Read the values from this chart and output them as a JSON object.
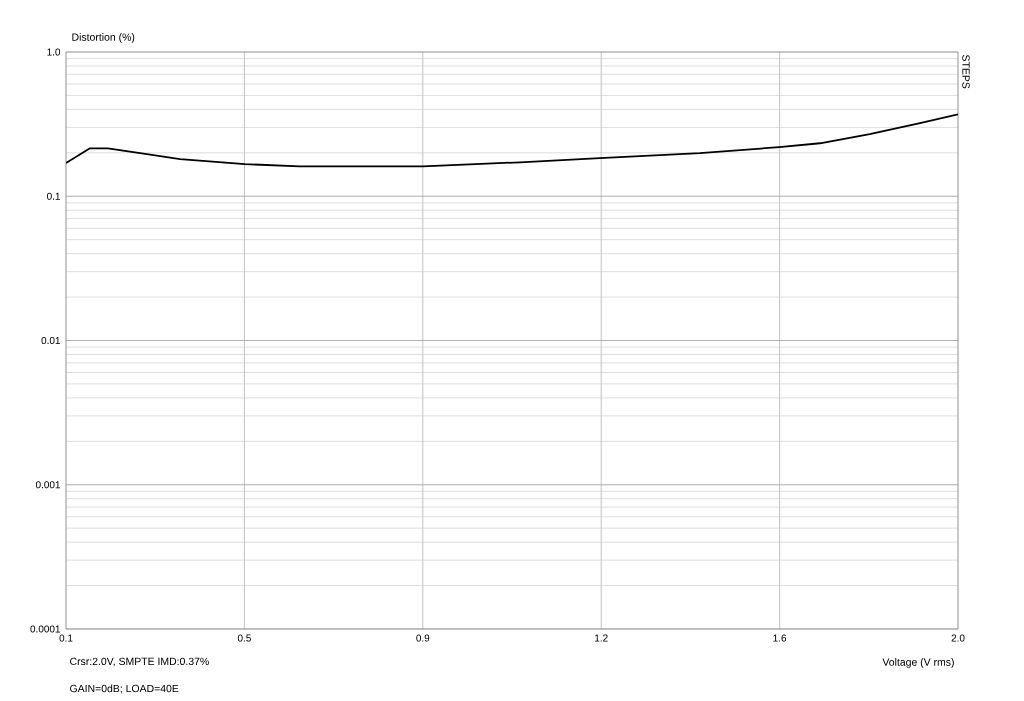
{
  "chart_data": {
    "type": "line",
    "xlabel": "Voltage (V rms)",
    "ylabel": "Distortion (%)",
    "annotations": [
      "STEPS",
      "Crsr:2.0V, SMPTE IMD:0.37%",
      "GAIN=0dB; LOAD=40E"
    ],
    "series": [
      {
        "color": "#000000",
        "x": [
          0.1,
          0.151,
          0.189,
          0.258,
          0.343,
          0.481,
          0.598,
          0.86,
          1.067,
          1.237,
          1.45,
          1.619,
          1.706,
          1.812,
          1.919,
          2.0
        ],
        "values": [
          0.17,
          0.215,
          0.215,
          0.199,
          0.181,
          0.167,
          0.161,
          0.161,
          0.172,
          0.184,
          0.199,
          0.219,
          0.233,
          0.27,
          0.321,
          0.37
        ]
      }
    ],
    "xlim": [
      0.1,
      2.0
    ],
    "xticks": [
      0.1,
      {
        "value": 0.48,
        "label": "0.5"
      },
      {
        "value": 0.86,
        "label": "0.9"
      },
      {
        "value": 1.24,
        "label": "1.2"
      },
      {
        "value": 1.62,
        "label": "1.6"
      },
      {
        "value": 2,
        "label": "2.0"
      }
    ],
    "ylim": [
      0.0001,
      1
    ],
    "yticks": [
      0.0001,
      0.001,
      0.01,
      0.1,
      {
        "value": 1,
        "label": "1.0"
      }
    ],
    "log": "y",
    "grid": true,
    "marker": "none",
    "line_style": "solid"
  }
}
